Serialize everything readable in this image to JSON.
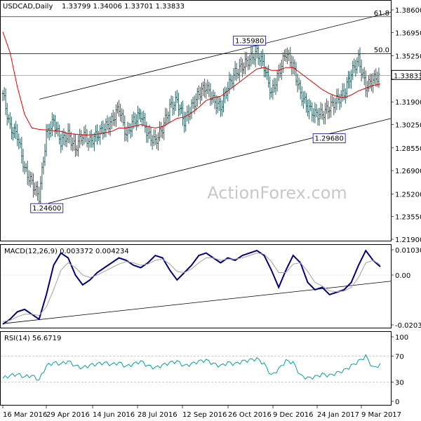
{
  "header": {
    "symbol": "USDCAD,Daily",
    "ohlc": "1.33799 1.34006 1.33701 1.33833"
  },
  "watermark": "ActionForex.com",
  "colors": {
    "bars": "#2f5f5f",
    "moving_average": "#e00000",
    "macd_line": "#000080",
    "signal_line": "#a0a0a0",
    "rsi_line": "#00a0a0",
    "trendline": "#000000",
    "grid_level": "#000000"
  },
  "chart_data": [
    {
      "type": "ohlc",
      "name": "price",
      "ylim": [
        1.219,
        1.386
      ],
      "y_ticks": [
        1.386,
        1.3695,
        1.3525,
        1.3355,
        1.319,
        1.3025,
        1.2855,
        1.269,
        1.252,
        1.2355,
        1.219
      ],
      "y_tick_labels": [
        "1.38600",
        "1.36950",
        "1.35250",
        "1.33550",
        "1.31900",
        "1.30250",
        "1.28550",
        "1.26900",
        "1.25200",
        "1.23550",
        "1.21900"
      ],
      "x_ticks": [
        "16 Mar 2016",
        "29 Apr 2016",
        "14 Jun 2016",
        "28 Jul 2016",
        "12 Sep 2016",
        "26 Oct 2016",
        "9 Dec 2016",
        "24 Jan 2017",
        "9 Mar 2017"
      ],
      "current_price_label": "1.33833",
      "current_price": 1.33833,
      "fib_levels": [
        {
          "label": "61.8",
          "value": 1.381
        },
        {
          "label": "50.0",
          "value": 1.354
        }
      ],
      "annotations": [
        {
          "label": "1.24600",
          "value": 1.246,
          "date": "2016-05-03"
        },
        {
          "label": "1.35980",
          "value": 1.3598,
          "date": "2016-11-15"
        },
        {
          "label": "1.29680",
          "value": 1.2968,
          "date": "2017-01-31"
        }
      ],
      "closes_weekly": [
        1.325,
        1.3,
        1.295,
        1.27,
        1.26,
        1.25,
        1.295,
        1.305,
        1.29,
        1.295,
        1.285,
        1.295,
        1.29,
        1.295,
        1.3,
        1.305,
        1.315,
        1.295,
        1.305,
        1.31,
        1.295,
        1.29,
        1.3,
        1.315,
        1.32,
        1.305,
        1.315,
        1.325,
        1.33,
        1.32,
        1.315,
        1.33,
        1.34,
        1.345,
        1.35,
        1.355,
        1.345,
        1.325,
        1.34,
        1.355,
        1.345,
        1.325,
        1.315,
        1.31,
        1.31,
        1.315,
        1.32,
        1.325,
        1.34,
        1.35,
        1.33,
        1.335,
        1.3383
      ],
      "moving_average_weekly": [
        1.37,
        1.355,
        1.33,
        1.31,
        1.3,
        1.299,
        1.2985,
        1.298,
        1.2975,
        1.296,
        1.2955,
        1.295,
        1.295,
        1.2955,
        1.2965,
        1.2975,
        1.3,
        1.3,
        1.301,
        1.3025,
        1.301,
        1.3,
        1.301,
        1.304,
        1.307,
        1.308,
        1.311,
        1.315,
        1.32,
        1.322,
        1.323,
        1.327,
        1.331,
        1.335,
        1.339,
        1.343,
        1.344,
        1.342,
        1.342,
        1.344,
        1.344,
        1.34,
        1.336,
        1.332,
        1.328,
        1.325,
        1.323,
        1.322,
        1.324,
        1.327,
        1.329,
        1.331,
        1.332
      ]
    },
    {
      "type": "line",
      "name": "macd",
      "label": "MACD(12,26,9) 0.003372 0.004234",
      "ylim": [
        -0.020324,
        0.010306
      ],
      "y_ticks": [
        0.010306,
        0.0,
        -0.020324
      ],
      "y_tick_labels": [
        "0.010306",
        "0.00",
        "-0.020324"
      ],
      "series": [
        {
          "values": [
            -0.02,
            -0.018,
            -0.015,
            -0.014,
            -0.016,
            -0.018,
            -0.008,
            0.004,
            0.009,
            0.007,
            0.0,
            -0.004,
            -0.002,
            0.001,
            0.003,
            0.005,
            0.007,
            0.006,
            0.004,
            0.003,
            0.005,
            0.008,
            0.007,
            0.002,
            -0.002,
            0.001,
            0.004,
            0.008,
            0.009,
            0.007,
            0.005,
            0.007,
            0.006,
            0.008,
            0.009,
            0.01,
            0.008,
            0.002,
            -0.005,
            0.002,
            0.008,
            0.005,
            -0.003,
            -0.006,
            -0.005,
            -0.008,
            -0.007,
            -0.006,
            -0.003,
            0.004,
            0.01,
            0.006,
            0.0034
          ]
        },
        {
          "values": [
            -0.019,
            -0.0185,
            -0.017,
            -0.016,
            -0.016,
            -0.0165,
            -0.013,
            -0.006,
            0.002,
            0.005,
            0.003,
            0.0,
            -0.001,
            0.0,
            0.0015,
            0.003,
            0.0045,
            0.0055,
            0.005,
            0.004,
            0.0045,
            0.006,
            0.0065,
            0.0045,
            0.0015,
            0.001,
            0.0025,
            0.005,
            0.007,
            0.007,
            0.006,
            0.0065,
            0.0065,
            0.007,
            0.008,
            0.009,
            0.0085,
            0.0055,
            0.001,
            0.001,
            0.0045,
            0.005,
            0.0015,
            -0.003,
            -0.0045,
            -0.0065,
            -0.0068,
            -0.0065,
            -0.005,
            -0.001,
            0.005,
            0.006,
            0.0042
          ]
        }
      ]
    },
    {
      "type": "line",
      "name": "rsi",
      "label": "RSI(14) 56.6719",
      "ylim": [
        0,
        100
      ],
      "y_ticks": [
        100,
        70,
        30,
        0
      ],
      "y_tick_labels": [
        "100",
        "70",
        "30",
        "0"
      ],
      "series": [
        {
          "values": [
            36,
            40,
            42,
            38,
            40,
            33,
            55,
            60,
            58,
            62,
            55,
            52,
            56,
            58,
            60,
            57,
            60,
            54,
            58,
            62,
            55,
            52,
            56,
            60,
            62,
            55,
            58,
            62,
            64,
            58,
            55,
            60,
            58,
            62,
            64,
            66,
            58,
            40,
            50,
            63,
            60,
            40,
            36,
            38,
            42,
            40,
            44,
            48,
            55,
            62,
            70,
            52,
            56.67
          ]
        }
      ]
    }
  ]
}
